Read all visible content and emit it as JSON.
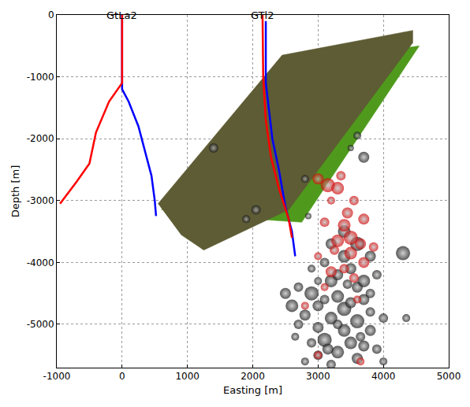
{
  "chart_data": {
    "type": "scatter",
    "x_label": "Easting [m]",
    "y_label": "Depth [m]",
    "xlim": [
      -1000,
      5000
    ],
    "ylim": [
      -5700,
      0
    ],
    "xticks": [
      -1000,
      0,
      1000,
      2000,
      3000,
      4000,
      5000
    ],
    "yticks": [
      -5000,
      -4000,
      -3000,
      -2000,
      -1000,
      0
    ],
    "grid": true,
    "annotations": [
      {
        "text": "GtLa2",
        "x": 0,
        "y": 0
      },
      {
        "text": "GTl2",
        "x": 2150,
        "y": 0
      }
    ],
    "series": [
      {
        "type": "area",
        "color": "#4f9a1c",
        "x": [
          600,
          2500,
          4550,
          2750,
          1300
        ],
        "values": [
          -3150,
          -800,
          -500,
          -3350,
          -3250
        ]
      },
      {
        "type": "area",
        "color": "#5e5c34",
        "x": [
          550,
          2450,
          4450,
          4450,
          2550,
          1250,
          900
        ],
        "values": [
          -3050,
          -650,
          -250,
          -450,
          -3150,
          -3800,
          -3550
        ]
      },
      {
        "type": "line",
        "color": "#0000ff",
        "x": [
          0,
          0,
          100,
          250,
          350,
          450,
          500,
          520
        ],
        "values": [
          0,
          -1200,
          -1400,
          -1800,
          -2200,
          -2600,
          -3000,
          -3250
        ]
      },
      {
        "type": "line",
        "color": "#ff0000",
        "x": [
          0,
          0,
          -200,
          -400,
          -500,
          -700,
          -950
        ],
        "values": [
          0,
          -1100,
          -1400,
          -1900,
          -2400,
          -2700,
          -3050
        ]
      },
      {
        "type": "line",
        "color": "#0000ff",
        "x": [
          2200,
          2200,
          2300,
          2400,
          2500,
          2600,
          2650
        ],
        "values": [
          -100,
          -1100,
          -2000,
          -2500,
          -3100,
          -3500,
          -3900
        ]
      },
      {
        "type": "line",
        "color": "#ff0000",
        "x": [
          2150,
          2160,
          2200,
          2280,
          2400,
          2550,
          2600
        ],
        "values": [
          0,
          -1000,
          -1700,
          -2300,
          -2800,
          -3300,
          -3600
        ]
      },
      {
        "type": "scatter",
        "marker": "sphere",
        "color": "#111111",
        "x": [
          1400,
          2050,
          1900,
          2800,
          3600,
          3500,
          3700,
          2850,
          3400,
          3200,
          3600,
          3400,
          3800,
          4300,
          3100,
          3500,
          3900,
          3200,
          3600,
          2700,
          2500,
          2900,
          3300,
          3700,
          2600,
          3000,
          3400,
          3800,
          2800,
          3200,
          3600,
          4000,
          4350,
          2700,
          3000,
          3400,
          3800,
          3100,
          3500,
          2900,
          3700,
          3300,
          3000,
          3600,
          3200,
          4000,
          3900,
          2650,
          3300,
          3700,
          3100,
          3500,
          3300,
          3800,
          3000,
          2900,
          3450,
          3650,
          3150,
          2800
        ],
        "values": [
          -2150,
          -3150,
          -3300,
          -2650,
          -1950,
          -2150,
          -2300,
          -3250,
          -3500,
          -3700,
          -3700,
          -3900,
          -3900,
          -3850,
          -4000,
          -4100,
          -4200,
          -4300,
          -4400,
          -4400,
          -4500,
          -4500,
          -4550,
          -4600,
          -4700,
          -4700,
          -4750,
          -4800,
          -4850,
          -4900,
          -4950,
          -4900,
          -4900,
          -5000,
          -5050,
          -5100,
          -5100,
          -5250,
          -5300,
          -5300,
          -5350,
          -5450,
          -5500,
          -5550,
          -5650,
          -5600,
          -5400,
          -5200,
          -4200,
          -4300,
          -4600,
          -4650,
          -5000,
          -4500,
          -4300,
          -4100,
          -4350,
          -5200,
          -5400,
          -5600
        ],
        "sizes": [
          6,
          6,
          5,
          5,
          5,
          4,
          7,
          4,
          8,
          7,
          9,
          8,
          7,
          9,
          6,
          7,
          6,
          8,
          7,
          6,
          7,
          9,
          8,
          7,
          8,
          7,
          9,
          6,
          7,
          8,
          9,
          6,
          5,
          6,
          7,
          8,
          7,
          9,
          8,
          6,
          7,
          8,
          6,
          7,
          6,
          5,
          6,
          5,
          7,
          8,
          6,
          7,
          6,
          6,
          5,
          5,
          6,
          6,
          7,
          5
        ]
      },
      {
        "type": "scatter",
        "marker": "sphere",
        "color": "#d40000",
        "x": [
          3150,
          3000,
          3300,
          3350,
          3550,
          3200,
          3450,
          3100,
          3400,
          3700,
          3500,
          3300,
          3650,
          3250,
          3500,
          3700,
          3400,
          3200,
          3550,
          3100,
          3000,
          3850,
          3600,
          2800,
          3650,
          3000
        ],
        "values": [
          -2750,
          -2650,
          -2800,
          -2600,
          -3000,
          -3000,
          -3200,
          -3350,
          -3400,
          -3300,
          -3600,
          -3650,
          -3700,
          -3800,
          -3850,
          -4000,
          -4100,
          -4150,
          -4250,
          -4400,
          -3900,
          -3750,
          -4600,
          -4700,
          -5600,
          -5500
        ],
        "sizes": [
          9,
          7,
          8,
          6,
          6,
          5,
          7,
          6,
          8,
          7,
          9,
          8,
          7,
          6,
          8,
          7,
          6,
          7,
          6,
          5,
          5,
          6,
          5,
          5,
          5,
          5
        ]
      }
    ]
  }
}
